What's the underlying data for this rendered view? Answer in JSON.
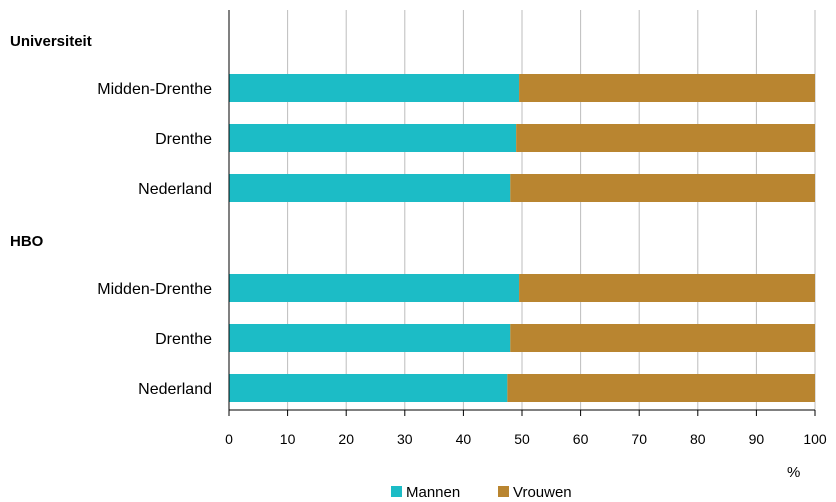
{
  "chart_data": {
    "type": "bar",
    "orientation": "horizontal",
    "stacked": true,
    "x_unit_label": "%",
    "xlim": [
      0,
      100
    ],
    "x_ticks": [
      0,
      10,
      20,
      30,
      40,
      50,
      60,
      70,
      80,
      90,
      100
    ],
    "grid": true,
    "legend_position": "bottom-center",
    "groups": [
      {
        "label": "Universiteit",
        "categories": [
          "Midden-Drenthe",
          "Drenthe",
          "Nederland"
        ]
      },
      {
        "label": "HBO",
        "categories": [
          "Midden-Drenthe",
          "Drenthe",
          "Nederland"
        ]
      }
    ],
    "series": [
      {
        "name": "Mannen",
        "color": "#1cbcc6",
        "values": [
          49.5,
          49,
          48,
          49.5,
          48,
          47.5
        ]
      },
      {
        "name": "Vrouwen",
        "color": "#b98530",
        "values": [
          50.5,
          51,
          52,
          50.5,
          52,
          52.5
        ]
      }
    ]
  }
}
